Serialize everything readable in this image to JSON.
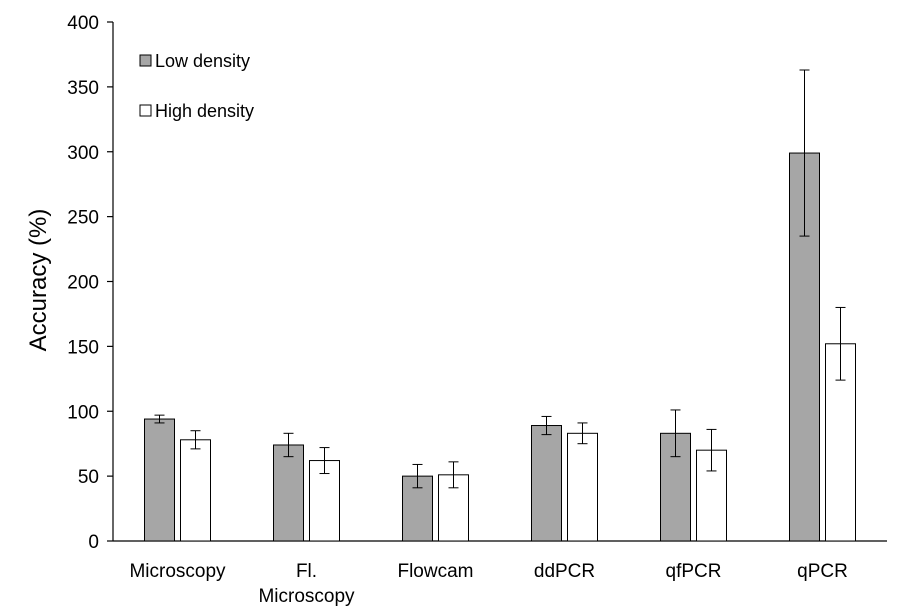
{
  "chart_data": {
    "type": "bar",
    "title": "",
    "xlabel": "",
    "ylabel": "Accuracy (%)",
    "ylim": [
      0,
      400
    ],
    "yticks": [
      0,
      50,
      100,
      150,
      200,
      250,
      300,
      350,
      400
    ],
    "categories": [
      [
        "Microscopy"
      ],
      [
        "Fl.",
        "Microscopy"
      ],
      [
        "Flowcam"
      ],
      [
        "ddPCR"
      ],
      [
        "qfPCR"
      ],
      [
        "qPCR"
      ]
    ],
    "series": [
      {
        "name": "Low density",
        "color": "#a6a6a6",
        "values": [
          94,
          74,
          50,
          89,
          83,
          299
        ],
        "errors": [
          3,
          9,
          9,
          7,
          18,
          64
        ]
      },
      {
        "name": "High density",
        "color": "#ffffff",
        "values": [
          78,
          62,
          51,
          83,
          70,
          152
        ],
        "errors": [
          7,
          10,
          10,
          8,
          16,
          28
        ]
      }
    ],
    "grid": false,
    "legend_position": "top-left"
  }
}
